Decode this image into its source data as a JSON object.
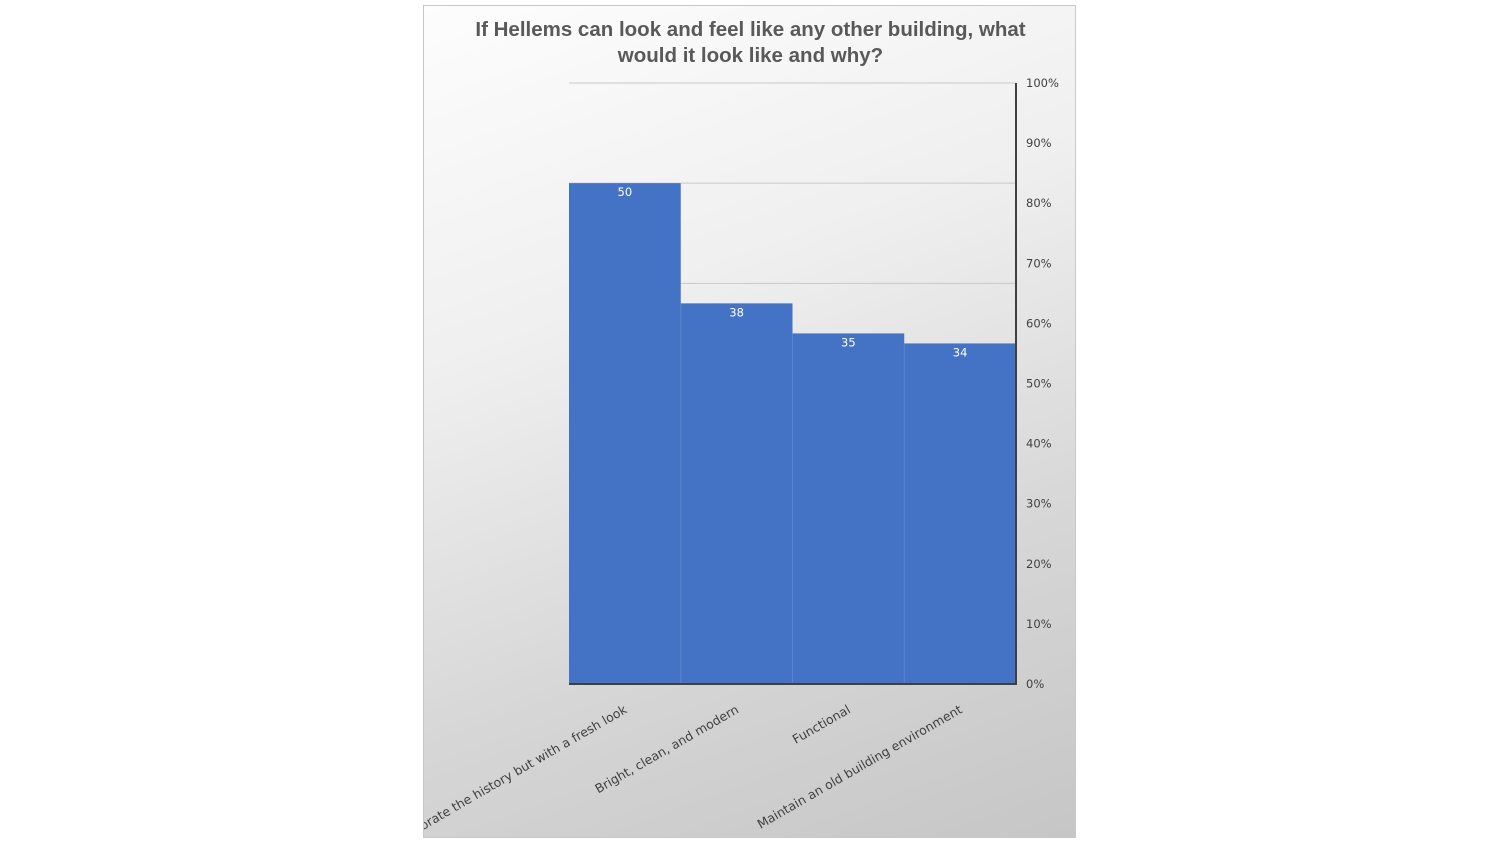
{
  "chart_data": {
    "type": "bar",
    "title": "If Hellems can look and feel like any other building, what would it look like and why?",
    "title_lines": [
      "If Hellems can look and feel like any other building, what",
      "would it look like and why?"
    ],
    "categories": [
      "Celebrate the history but with a fresh look",
      "Bright, clean, and modern",
      "Functional",
      "Maintain an old building environment"
    ],
    "values": [
      50,
      38,
      35,
      34
    ],
    "data_labels": [
      "50",
      "38",
      "35",
      "34"
    ],
    "y_axis_side": "right",
    "y_ticks": [
      "0%",
      "10%",
      "20%",
      "30%",
      "40%",
      "50%",
      "60%",
      "70%",
      "80%",
      "90%",
      "100%"
    ],
    "ylim": [
      0,
      60
    ],
    "xlabel": "",
    "ylabel": "",
    "grid": true,
    "bar_color": "#4472C4"
  }
}
